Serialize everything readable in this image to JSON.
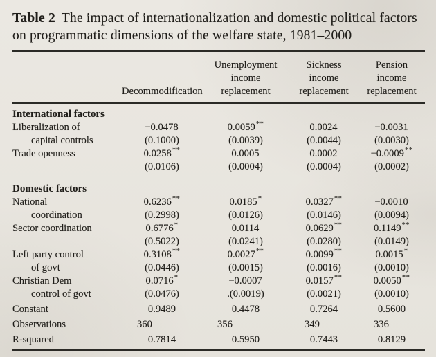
{
  "title": {
    "label": "Table 2",
    "text": "The impact of internationalization and domestic political factors on programmatic dimensions of the welfare state, 1981–2000"
  },
  "header": {
    "c1": "Decommodification",
    "c2": "Unemployment\nincome\nreplacement",
    "c3": "Sickness\nincome\nreplacement",
    "c4": "Pension\nincome\nreplacement"
  },
  "sections": [
    {
      "heading": "International factors",
      "rows": [
        {
          "label1": "Liberalization of",
          "label2": "capital controls",
          "coefs": [
            {
              "v": "−0.0478",
              "s": ""
            },
            {
              "v": "0.0059",
              "s": "**"
            },
            {
              "v": "0.0024",
              "s": ""
            },
            {
              "v": "−0.0031",
              "s": ""
            }
          ],
          "ses": [
            "(0.1000)",
            "(0.0039)",
            "(0.0044)",
            "(0.0030)"
          ]
        },
        {
          "label1": "Trade openness",
          "label2": "",
          "coefs": [
            {
              "v": "0.0258",
              "s": "**"
            },
            {
              "v": "0.0005",
              "s": ""
            },
            {
              "v": "0.0002",
              "s": ""
            },
            {
              "v": "−0.0009",
              "s": "**"
            }
          ],
          "ses": [
            "(0.0106)",
            "(0.0004)",
            "(0.0004)",
            "(0.0002)"
          ]
        }
      ]
    },
    {
      "heading": "Domestic factors",
      "rows": [
        {
          "label1": "National",
          "label2": "coordination",
          "coefs": [
            {
              "v": "0.6236",
              "s": "**"
            },
            {
              "v": "0.0185",
              "s": "*"
            },
            {
              "v": "0.0327",
              "s": "**"
            },
            {
              "v": "−0.0010",
              "s": ""
            }
          ],
          "ses": [
            "(0.2998)",
            "(0.0126)",
            "(0.0146)",
            "(0.0094)"
          ]
        },
        {
          "label1": "Sector coordination",
          "label2": "",
          "coefs": [
            {
              "v": "0.6776",
              "s": "*"
            },
            {
              "v": "0.0114",
              "s": ""
            },
            {
              "v": "0.0629",
              "s": "**"
            },
            {
              "v": "0.1149",
              "s": "**"
            }
          ],
          "ses": [
            "(0.5022)",
            "(0.0241)",
            "(0.0280)",
            "(0.0149)"
          ]
        },
        {
          "label1": "Left party control",
          "label2": "of govt",
          "coefs": [
            {
              "v": "0.3108",
              "s": "**"
            },
            {
              "v": "0.0027",
              "s": "**"
            },
            {
              "v": "0.0099",
              "s": "**"
            },
            {
              "v": "0.0015",
              "s": "*"
            }
          ],
          "ses": [
            "(0.0446)",
            "(0.0015)",
            "(0.0016)",
            "(0.0010)"
          ]
        },
        {
          "label1": "Christian Dem",
          "label2": "control of govt",
          "coefs": [
            {
              "v": "0.0716",
              "s": "*"
            },
            {
              "v": "−0.0007",
              "s": ""
            },
            {
              "v": "0.0157",
              "s": "**"
            },
            {
              "v": "0.0050",
              "s": "**"
            }
          ],
          "ses": [
            "(0.0476)",
            ".(0.0019)",
            "(0.0021)",
            "(0.0010)"
          ]
        }
      ]
    }
  ],
  "summary": [
    {
      "label": "Constant",
      "values": [
        "0.9489",
        "0.4478",
        "0.7264",
        "0.5600"
      ]
    },
    {
      "label": "Observations",
      "values": [
        "360",
        "356",
        "349",
        "336"
      ]
    },
    {
      "label": "R-squared",
      "values": [
        "0.7814",
        "0.5950",
        "0.7443",
        "0.8129"
      ]
    }
  ]
}
